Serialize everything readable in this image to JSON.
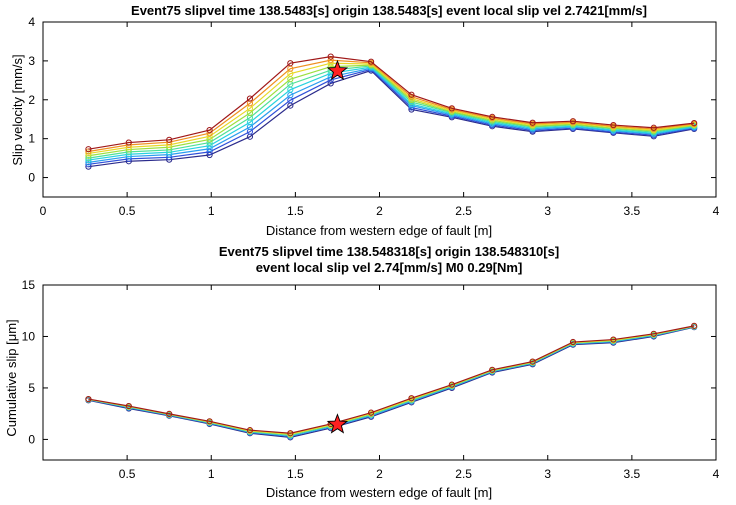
{
  "chart_data": [
    {
      "type": "line",
      "title": "Event75 slipvel time 138.5483[s] origin 138.5483[s] event local slip vel 2.7421[mm/s]",
      "xlabel": "Distance from western edge of fault [m]",
      "ylabel": "Slip velocity [mm/s]",
      "xlim": [
        0,
        4
      ],
      "ylim": [
        -0.5,
        4
      ],
      "xticks": [
        0,
        0.5,
        1,
        1.5,
        2,
        2.5,
        3,
        3.5,
        4
      ],
      "yticks": [
        0,
        1,
        2,
        3,
        4
      ],
      "xtick_labels": [
        "0",
        "0.5",
        "1",
        "1.5",
        "2",
        "2.5",
        "3",
        "3.5",
        "4"
      ],
      "ytick_labels": [
        "0",
        "1",
        "2",
        "3",
        "4"
      ],
      "x": [
        0.27,
        0.51,
        0.75,
        0.99,
        1.23,
        1.47,
        1.71,
        1.95,
        2.19,
        2.43,
        2.67,
        2.91,
        3.15,
        3.39,
        3.63,
        3.87
      ],
      "series": [
        {
          "color": "#2b2b8c",
          "values": [
            0.28,
            0.42,
            0.46,
            0.58,
            1.05,
            1.85,
            2.42,
            2.75,
            1.75,
            1.55,
            1.32,
            1.18,
            1.25,
            1.15,
            1.06,
            1.25
          ]
        },
        {
          "color": "#3050d8",
          "values": [
            0.34,
            0.48,
            0.52,
            0.66,
            1.18,
            1.99,
            2.51,
            2.78,
            1.8,
            1.58,
            1.35,
            1.21,
            1.27,
            1.17,
            1.09,
            1.27
          ]
        },
        {
          "color": "#2a9df0",
          "values": [
            0.39,
            0.54,
            0.59,
            0.74,
            1.3,
            2.12,
            2.59,
            2.81,
            1.85,
            1.61,
            1.38,
            1.24,
            1.3,
            1.2,
            1.12,
            1.29
          ]
        },
        {
          "color": "#28d2e0",
          "values": [
            0.45,
            0.6,
            0.65,
            0.82,
            1.42,
            2.26,
            2.68,
            2.84,
            1.89,
            1.64,
            1.41,
            1.27,
            1.32,
            1.22,
            1.14,
            1.31
          ]
        },
        {
          "color": "#4ee098",
          "values": [
            0.5,
            0.66,
            0.71,
            0.9,
            1.54,
            2.4,
            2.76,
            2.87,
            1.94,
            1.67,
            1.44,
            1.3,
            1.35,
            1.25,
            1.17,
            1.33
          ]
        },
        {
          "color": "#9be040",
          "values": [
            0.56,
            0.72,
            0.78,
            0.98,
            1.66,
            2.53,
            2.85,
            2.89,
            1.99,
            1.69,
            1.47,
            1.32,
            1.37,
            1.27,
            1.2,
            1.34
          ]
        },
        {
          "color": "#e8d828",
          "values": [
            0.62,
            0.78,
            0.84,
            1.06,
            1.78,
            2.67,
            2.94,
            2.92,
            2.03,
            1.72,
            1.5,
            1.35,
            1.4,
            1.3,
            1.22,
            1.36
          ]
        },
        {
          "color": "#f09020",
          "values": [
            0.67,
            0.84,
            0.91,
            1.14,
            1.91,
            2.8,
            3.02,
            2.95,
            2.08,
            1.75,
            1.53,
            1.38,
            1.42,
            1.32,
            1.25,
            1.38
          ]
        },
        {
          "color": "#a01818",
          "values": [
            0.73,
            0.9,
            0.97,
            1.22,
            2.03,
            2.94,
            3.11,
            2.98,
            2.13,
            1.78,
            1.56,
            1.41,
            1.45,
            1.35,
            1.28,
            1.4
          ]
        }
      ],
      "star": {
        "x": 1.75,
        "y": 2.74,
        "color": "#ff2020"
      },
      "grid": false
    },
    {
      "type": "line",
      "title_lines": [
        "Event75 slipvel time 138.548318[s] origin 138.548310[s]",
        "event local slip vel 2.74[mm/s] M0 0.29[Nm]"
      ],
      "xlabel": "Distance from western edge of fault [m]",
      "ylabel": "Cumulative slip [μm]",
      "xlim": [
        0,
        4
      ],
      "ylim": [
        -2,
        15
      ],
      "xticks": [
        0.5,
        1,
        1.5,
        2,
        2.5,
        3,
        3.5,
        4
      ],
      "yticks": [
        0,
        5,
        10,
        15
      ],
      "xtick_labels": [
        "0.5",
        "1",
        "1.5",
        "2",
        "2.5",
        "3",
        "3.5",
        "4"
      ],
      "ytick_labels": [
        "0",
        "5",
        "10",
        "15"
      ],
      "x": [
        0.27,
        0.51,
        0.75,
        0.99,
        1.23,
        1.47,
        1.71,
        1.95,
        2.19,
        2.43,
        2.67,
        2.91,
        3.15,
        3.39,
        3.63,
        3.87
      ],
      "series": [
        {
          "color": "#2b2b8c",
          "values": [
            3.8,
            3.0,
            2.3,
            1.5,
            0.6,
            0.2,
            1.1,
            2.2,
            3.6,
            5.0,
            6.5,
            7.3,
            9.2,
            9.4,
            10.0,
            10.9
          ]
        },
        {
          "color": "#2a9df0",
          "values": [
            3.85,
            3.08,
            2.35,
            1.58,
            0.68,
            0.3,
            1.2,
            2.3,
            3.7,
            5.1,
            6.58,
            7.38,
            9.28,
            9.48,
            10.08,
            10.94
          ]
        },
        {
          "color": "#4ee098",
          "values": [
            3.88,
            3.14,
            2.4,
            1.64,
            0.75,
            0.4,
            1.3,
            2.4,
            3.8,
            5.18,
            6.64,
            7.44,
            9.34,
            9.56,
            10.14,
            10.97
          ]
        },
        {
          "color": "#e8d828",
          "values": [
            3.9,
            3.19,
            2.44,
            1.7,
            0.82,
            0.5,
            1.4,
            2.5,
            3.9,
            5.25,
            6.7,
            7.5,
            9.4,
            9.62,
            10.2,
            11.0
          ]
        },
        {
          "color": "#a01818",
          "values": [
            3.92,
            3.24,
            2.48,
            1.76,
            0.9,
            0.6,
            1.5,
            2.6,
            4.0,
            5.32,
            6.76,
            7.56,
            9.46,
            9.7,
            10.26,
            11.03
          ]
        }
      ],
      "star": {
        "x": 1.75,
        "y": 1.45,
        "color": "#ff2020"
      },
      "grid": false
    }
  ]
}
